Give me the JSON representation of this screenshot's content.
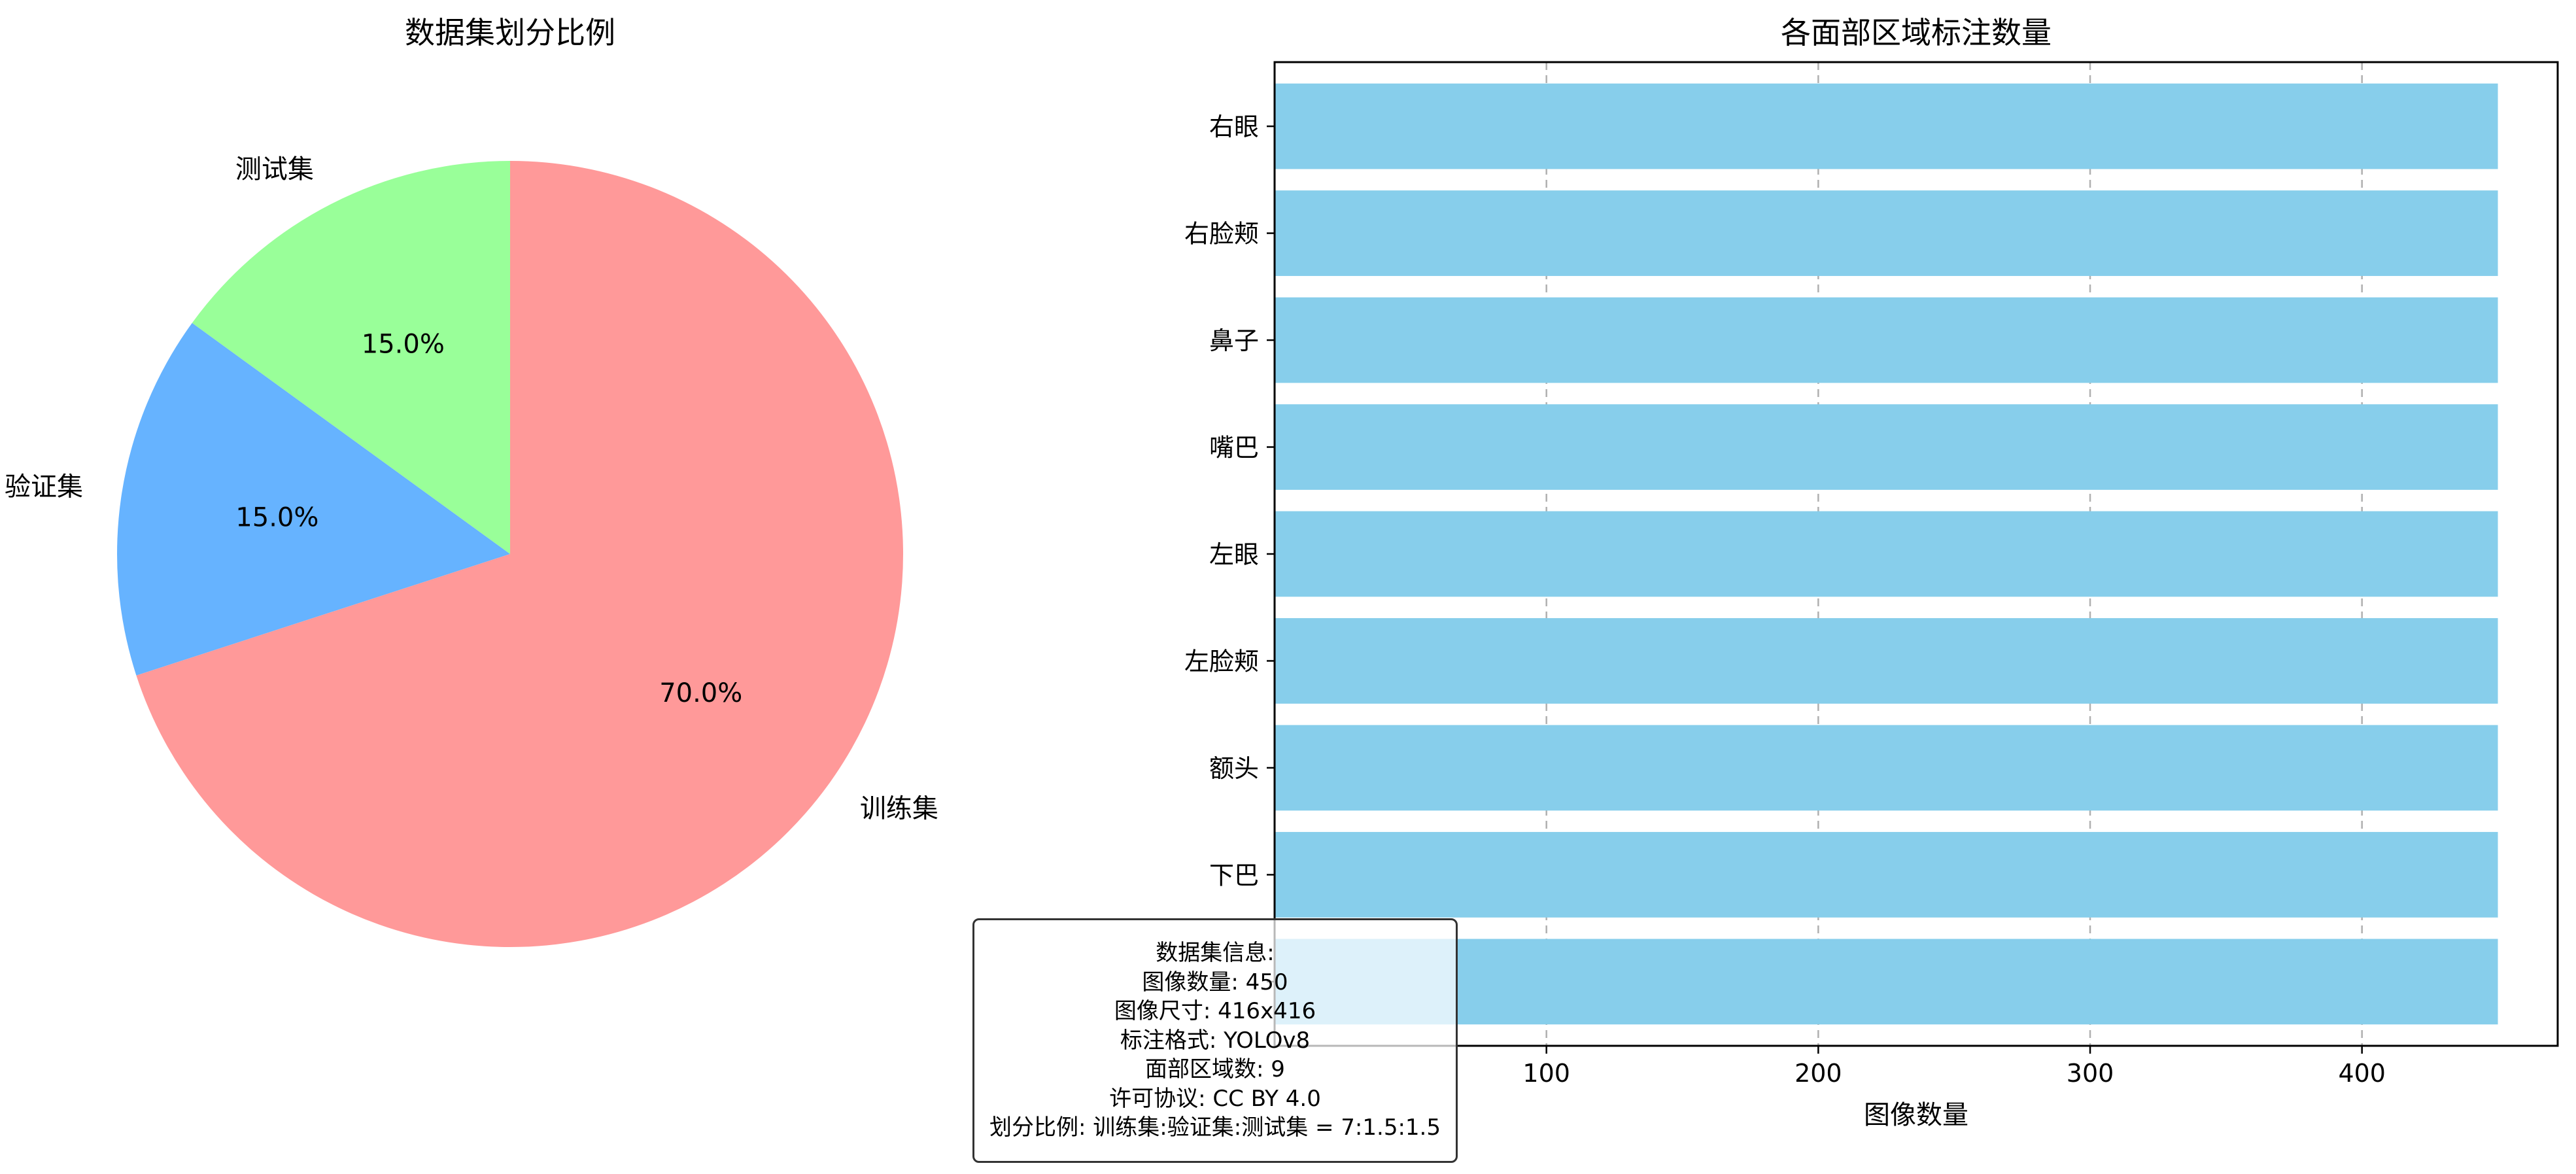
{
  "chart_data": [
    {
      "type": "pie",
      "title": "数据集划分比例",
      "labels": [
        "训练集",
        "验证集",
        "测试集"
      ],
      "values": [
        70.0,
        15.0,
        15.0
      ],
      "value_labels": [
        "70.0%",
        "15.0%",
        "15.0%"
      ],
      "colors": [
        "#ff9999",
        "#66b3ff",
        "#99ff99"
      ],
      "start_angle_deg": 90,
      "direction": "clockwise"
    },
    {
      "type": "bar",
      "orientation": "horizontal",
      "title": "各面部区域标注数量",
      "xlabel": "图像数量",
      "ylabel": "",
      "categories": [
        "右眼",
        "右脸颊",
        "鼻子",
        "嘴巴",
        "左眼",
        "左脸颊",
        "额头",
        "下巴",
        ""
      ],
      "values": [
        450,
        450,
        450,
        450,
        450,
        450,
        450,
        450,
        450
      ],
      "xlim": [
        0,
        472
      ],
      "xticks": [
        100,
        200,
        300,
        400
      ],
      "grid": "x-dashed",
      "color": "#87ceeb"
    }
  ],
  "info_box": {
    "lines": [
      "数据集信息:",
      "图像数量: 450",
      "图像尺寸: 416x416",
      "标注格式: YOLOv8",
      "面部区域数: 9",
      "许可协议: CC BY 4.0",
      "划分比例: 训练集:验证集:测试集 = 7:1.5:1.5"
    ]
  }
}
